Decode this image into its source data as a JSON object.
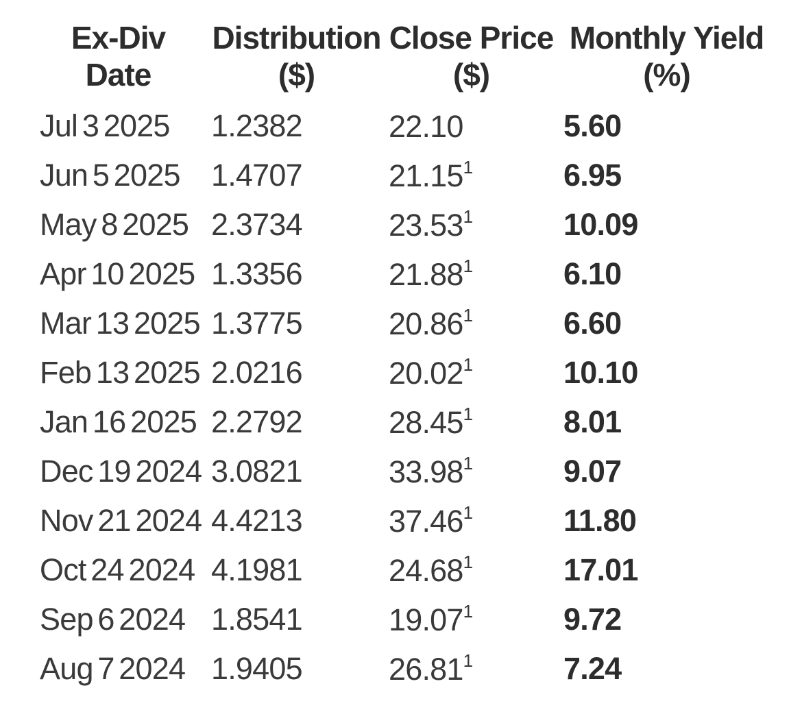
{
  "colors": {
    "background": "#ffffff",
    "text": "#3a3a3a",
    "header_text": "#2d2d2d"
  },
  "table": {
    "columns": [
      {
        "label": "Ex-Div",
        "unit": "Date"
      },
      {
        "label": "Distribution",
        "unit": "($)"
      },
      {
        "label": "Close Price",
        "unit": "($)"
      },
      {
        "label": "Monthly Yield",
        "unit": "(%)"
      }
    ],
    "rows": [
      {
        "date": "Jul 3 2025",
        "distribution": "1.2382",
        "close": "22.10",
        "close_sup": "",
        "yield": "5.60"
      },
      {
        "date": "Jun 5 2025",
        "distribution": "1.4707",
        "close": "21.15",
        "close_sup": "1",
        "yield": "6.95"
      },
      {
        "date": "May 8 2025",
        "distribution": "2.3734",
        "close": "23.53",
        "close_sup": "1",
        "yield": "10.09"
      },
      {
        "date": "Apr 10 2025",
        "distribution": "1.3356",
        "close": "21.88",
        "close_sup": "1",
        "yield": "6.10"
      },
      {
        "date": "Mar 13 2025",
        "distribution": "1.3775",
        "close": "20.86",
        "close_sup": "1",
        "yield": "6.60"
      },
      {
        "date": "Feb 13 2025",
        "distribution": "2.0216",
        "close": "20.02",
        "close_sup": "1",
        "yield": "10.10"
      },
      {
        "date": "Jan 16 2025",
        "distribution": "2.2792",
        "close": "28.45",
        "close_sup": "1",
        "yield": "8.01"
      },
      {
        "date": "Dec 19 2024",
        "distribution": "3.0821",
        "close": "33.98",
        "close_sup": "1",
        "yield": "9.07"
      },
      {
        "date": "Nov 21 2024",
        "distribution": "4.4213",
        "close": "37.46",
        "close_sup": "1",
        "yield": "11.80"
      },
      {
        "date": "Oct 24 2024",
        "distribution": "4.1981",
        "close": "24.68",
        "close_sup": "1",
        "yield": "17.01"
      },
      {
        "date": "Sep 6 2024",
        "distribution": "1.8541",
        "close": "19.07",
        "close_sup": "1",
        "yield": "9.72"
      },
      {
        "date": "Aug 7 2024",
        "distribution": "1.9405",
        "close": "26.81",
        "close_sup": "1",
        "yield": "7.24"
      }
    ]
  },
  "chart_data": {
    "type": "table",
    "title": "",
    "columns": [
      "Ex-Div Date",
      "Distribution ($)",
      "Close Price ($)",
      "Monthly Yield (%)"
    ],
    "categories": [
      "Jul 3 2025",
      "Jun 5 2025",
      "May 8 2025",
      "Apr 10 2025",
      "Mar 13 2025",
      "Feb 13 2025",
      "Jan 16 2025",
      "Dec 19 2024",
      "Nov 21 2024",
      "Oct 24 2024",
      "Sep 6 2024",
      "Aug 7 2024"
    ],
    "series": [
      {
        "name": "Distribution ($)",
        "values": [
          1.2382,
          1.4707,
          2.3734,
          1.3356,
          1.3775,
          2.0216,
          2.2792,
          3.0821,
          4.4213,
          4.1981,
          1.8541,
          1.9405
        ]
      },
      {
        "name": "Close Price ($)",
        "values": [
          22.1,
          21.15,
          23.53,
          21.88,
          20.86,
          20.02,
          28.45,
          33.98,
          37.46,
          24.68,
          19.07,
          26.81
        ]
      },
      {
        "name": "Monthly Yield (%)",
        "values": [
          5.6,
          6.95,
          10.09,
          6.1,
          6.6,
          10.1,
          8.01,
          9.07,
          11.8,
          17.01,
          9.72,
          7.24
        ]
      }
    ],
    "notes": "Close prices except Jul 3 2025 carry superscript footnote 1"
  }
}
